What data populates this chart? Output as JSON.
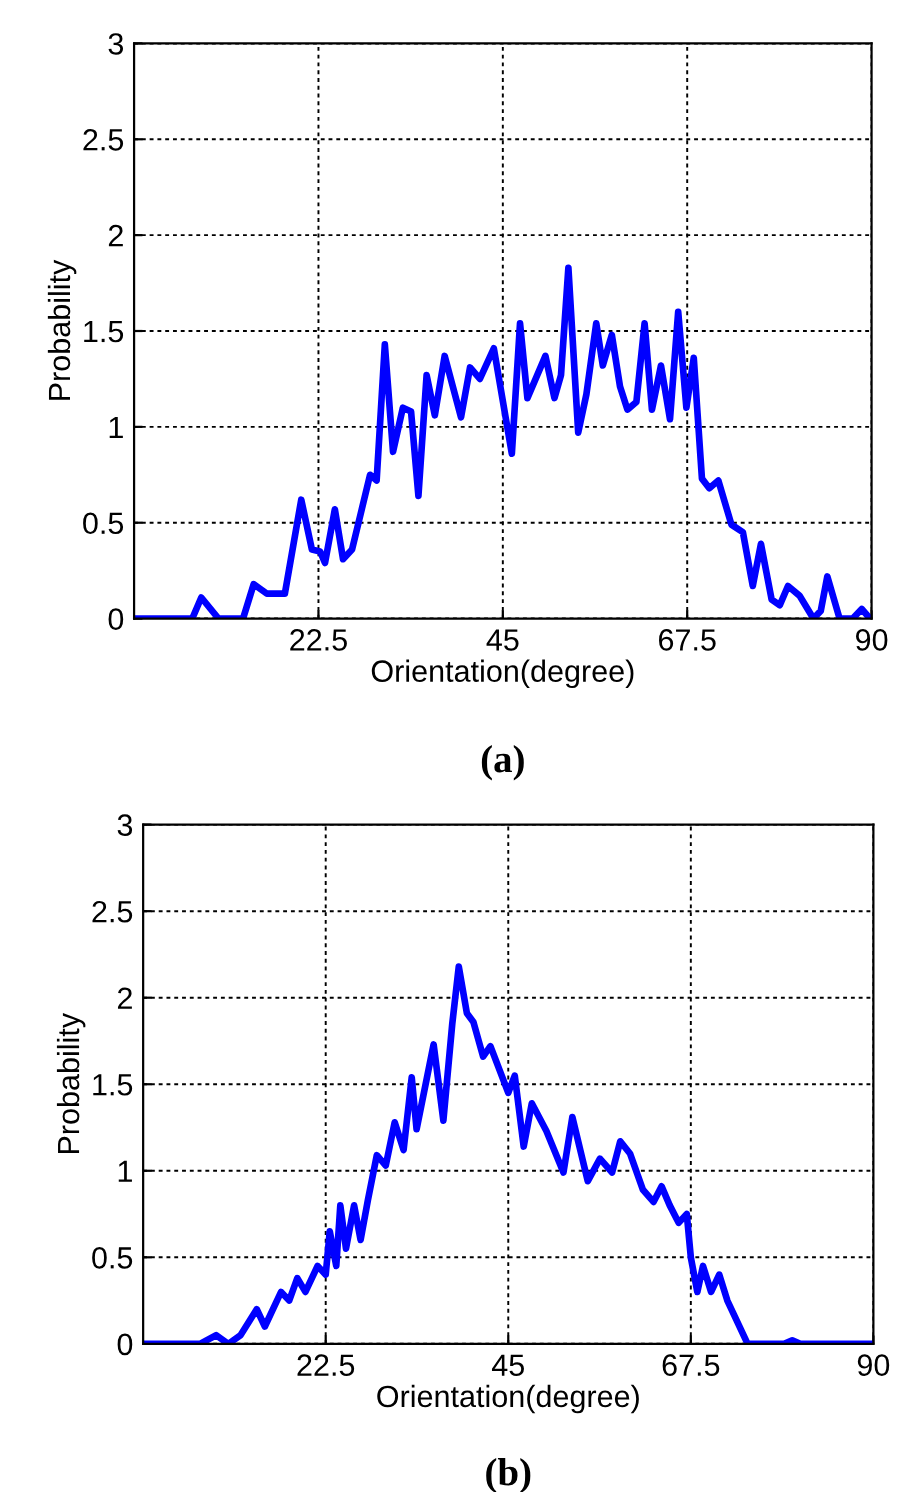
{
  "chart_data": [
    {
      "type": "line",
      "xlabel": "Orientation(degree)",
      "ylabel": "Probability",
      "annotations": [
        "(a)"
      ],
      "xlim": [
        0,
        90
      ],
      "ylim": [
        0,
        3
      ],
      "xticks": [
        22.5,
        45,
        67.5,
        90
      ],
      "yticks": [
        0,
        0.5,
        1,
        1.5,
        2,
        2.5,
        3
      ],
      "grid": true,
      "line_style": "solid",
      "series": [
        {
          "color": "#0000ff",
          "x": [
            0.3,
            7.1,
            8.2,
            10.3,
            13.3,
            14.6,
            16.2,
            18.4,
            20.4,
            21.7,
            22.7,
            23.3,
            24.5,
            25.5,
            26.6,
            28.8,
            29.6,
            30.6,
            31.6,
            32.8,
            33.8,
            34.7,
            35.7,
            36.7,
            37.9,
            39.9,
            41.0,
            42.2,
            43.9,
            46.1,
            47.1,
            48.0,
            50.2,
            51.3,
            52.1,
            53.0,
            54.2,
            55.2,
            56.4,
            57.2,
            58.3,
            59.3,
            60.2,
            61.3,
            62.3,
            63.2,
            64.3,
            65.4,
            66.4,
            67.4,
            68.3,
            69.3,
            70.2,
            71.3,
            72.9,
            74.3,
            75.5,
            76.5,
            77.8,
            78.8,
            79.8,
            81.2,
            82.9,
            83.8,
            84.6,
            86.1,
            87.7,
            88.8,
            89.8
          ],
          "values": [
            0,
            0,
            0.11,
            0,
            0,
            0.18,
            0.13,
            0.13,
            0.62,
            0.36,
            0.35,
            0.29,
            0.57,
            0.31,
            0.36,
            0.75,
            0.72,
            1.43,
            0.87,
            1.1,
            1.08,
            0.64,
            1.27,
            1.06,
            1.37,
            1.05,
            1.31,
            1.25,
            1.41,
            0.86,
            1.54,
            1.15,
            1.37,
            1.15,
            1.27,
            1.83,
            0.97,
            1.17,
            1.54,
            1.32,
            1.48,
            1.21,
            1.09,
            1.13,
            1.54,
            1.09,
            1.32,
            1.04,
            1.6,
            1.1,
            1.36,
            0.73,
            0.68,
            0.72,
            0.49,
            0.45,
            0.17,
            0.39,
            0.1,
            0.07,
            0.17,
            0.12,
            0,
            0.04,
            0.22,
            0,
            0,
            0.05,
            0
          ]
        }
      ]
    },
    {
      "type": "line",
      "xlabel": "Orientation(degree)",
      "ylabel": "Probability",
      "annotations": [
        "(b)"
      ],
      "xlim": [
        0,
        90
      ],
      "ylim": [
        0,
        3
      ],
      "xticks": [
        22.5,
        45,
        67.5,
        90
      ],
      "yticks": [
        0,
        0.5,
        1,
        1.5,
        2,
        2.5,
        3
      ],
      "grid": true,
      "line_style": "solid",
      "series": [
        {
          "color": "#0000ff",
          "x": [
            0.3,
            7,
            9,
            10.5,
            12,
            14,
            15,
            17,
            18,
            19,
            20,
            21.5,
            22.5,
            23,
            23.8,
            24.3,
            25,
            26,
            26.8,
            27.7,
            28.8,
            29.9,
            31.0,
            32.1,
            33.1,
            33.7,
            35.8,
            37.0,
            38.1,
            38.9,
            39.9,
            40.7,
            41.9,
            42.8,
            45.0,
            45.8,
            46.9,
            47.9,
            49.7,
            51.8,
            52.9,
            54.8,
            56.3,
            57.8,
            58.8,
            60.0,
            61.6,
            62.9,
            63.9,
            64.9,
            66,
            67,
            67.5,
            68.3,
            69,
            70,
            71,
            72,
            73,
            74.5,
            79,
            80,
            81,
            90
          ],
          "values": [
            0,
            0,
            0.05,
            0,
            0.05,
            0.2,
            0.1,
            0.3,
            0.25,
            0.38,
            0.3,
            0.45,
            0.4,
            0.65,
            0.45,
            0.8,
            0.55,
            0.8,
            0.6,
            0.83,
            1.09,
            1.03,
            1.28,
            1.12,
            1.54,
            1.24,
            1.73,
            1.29,
            1.85,
            2.18,
            1.91,
            1.86,
            1.66,
            1.72,
            1.45,
            1.55,
            1.14,
            1.39,
            1.23,
            0.99,
            1.31,
            0.94,
            1.07,
            0.99,
            1.17,
            1.1,
            0.89,
            0.82,
            0.91,
            0.8,
            0.7,
            0.75,
            0.5,
            0.3,
            0.45,
            0.3,
            0.4,
            0.25,
            0.15,
            0,
            0,
            0.02,
            0,
            0
          ]
        }
      ]
    }
  ]
}
